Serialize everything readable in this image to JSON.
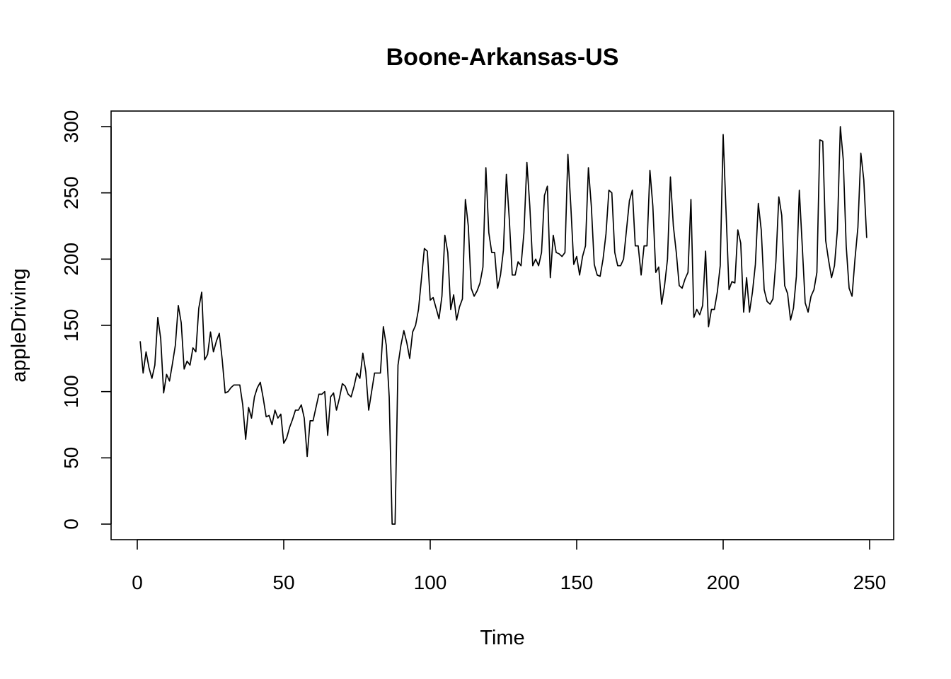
{
  "chart_data": {
    "type": "line",
    "title": "Boone-Arkansas-US",
    "xlabel": "Time",
    "ylabel": "appleDriving",
    "xlim": [
      1,
      248
    ],
    "ylim": [
      0,
      300
    ],
    "x_ticks": [
      0,
      50,
      100,
      150,
      200,
      250
    ],
    "y_ticks": [
      0,
      50,
      100,
      150,
      200,
      250,
      300
    ],
    "grid": false,
    "legend": "none",
    "series": [
      {
        "color": "#000000",
        "x_start": 1,
        "values": [
          138,
          114,
          130,
          118,
          110,
          120,
          156,
          140,
          99,
          113,
          108,
          121,
          135,
          165,
          152,
          117,
          123,
          120,
          133,
          130,
          163,
          175,
          124,
          128,
          145,
          130,
          138,
          144,
          124,
          99,
          100,
          103,
          105,
          105,
          105,
          90,
          64,
          88,
          80,
          96,
          103,
          107,
          95,
          81,
          82,
          75,
          86,
          80,
          83,
          61,
          65,
          73,
          79,
          86,
          86,
          90,
          80,
          51,
          78,
          78,
          88,
          98,
          98,
          100,
          67,
          96,
          99,
          86,
          95,
          106,
          104,
          98,
          96,
          104,
          114,
          110,
          129,
          115,
          86,
          100,
          114,
          114,
          114,
          149,
          135,
          96,
          0,
          0,
          120,
          135,
          146,
          137,
          125,
          145,
          150,
          162,
          185,
          208,
          206,
          169,
          171,
          163,
          155,
          172,
          218,
          205,
          162,
          173,
          154,
          164,
          170,
          245,
          225,
          178,
          172,
          176,
          182,
          194,
          269,
          220,
          205,
          205,
          178,
          188,
          207,
          264,
          230,
          188,
          188,
          198,
          195,
          220,
          273,
          240,
          195,
          200,
          195,
          205,
          248,
          255,
          186,
          218,
          205,
          204,
          202,
          205,
          279,
          240,
          196,
          202,
          188,
          202,
          210,
          269,
          240,
          196,
          188,
          187,
          200,
          219,
          252,
          250,
          205,
          195,
          195,
          200,
          222,
          244,
          252,
          210,
          210,
          188,
          210,
          210,
          267,
          240,
          190,
          194,
          166,
          180,
          200,
          262,
          225,
          205,
          180,
          178,
          185,
          190,
          245,
          156,
          162,
          158,
          165,
          206,
          149,
          162,
          162,
          175,
          195,
          294,
          235,
          177,
          183,
          182,
          222,
          212,
          160,
          186,
          160,
          175,
          196,
          242,
          222,
          177,
          168,
          166,
          170,
          198,
          247,
          233,
          180,
          174,
          154,
          163,
          187,
          252,
          210,
          167,
          160,
          172,
          177,
          190,
          290,
          289,
          214,
          199,
          186,
          195,
          222,
          300,
          275,
          210,
          178,
          172,
          200,
          224,
          280,
          260,
          216
        ]
      }
    ]
  }
}
